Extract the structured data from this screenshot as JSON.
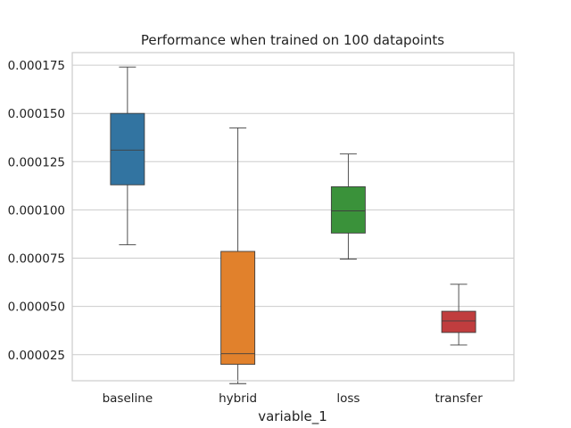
{
  "chart_data": {
    "type": "box",
    "title": "Performance when trained on 100 datapoints",
    "xlabel": "variable_1",
    "ylabel": "",
    "ylim": [
      1.15e-05,
      0.0001815
    ],
    "yticks": [
      2.5e-05,
      5e-05,
      7.5e-05,
      0.0001,
      0.000125,
      0.00015,
      0.000175
    ],
    "ytick_labels": [
      "0.000025",
      "0.000050",
      "0.000075",
      "0.000100",
      "0.000125",
      "0.000150",
      "0.000175"
    ],
    "grid": true,
    "categories": [
      "baseline",
      "hybrid",
      "loss",
      "transfer"
    ],
    "boxes": [
      {
        "category": "baseline",
        "whisker_low": 8.2e-05,
        "q1": 0.000113,
        "median": 0.000131,
        "q3": 0.00015,
        "whisker_high": 0.000174,
        "color": "#3274a1"
      },
      {
        "category": "hybrid",
        "whisker_low": 1e-05,
        "q1": 2e-05,
        "median": 2.55e-05,
        "q3": 7.85e-05,
        "whisker_high": 0.0001425,
        "color": "#e1812c"
      },
      {
        "category": "loss",
        "whisker_low": 7.45e-05,
        "q1": 8.8e-05,
        "median": 9.95e-05,
        "q3": 0.000112,
        "whisker_high": 0.000129,
        "color": "#3a923a"
      },
      {
        "category": "transfer",
        "whisker_low": 3e-05,
        "q1": 3.65e-05,
        "median": 4.25e-05,
        "q3": 4.75e-05,
        "whisker_high": 6.15e-05,
        "color": "#c03d3e"
      }
    ]
  }
}
